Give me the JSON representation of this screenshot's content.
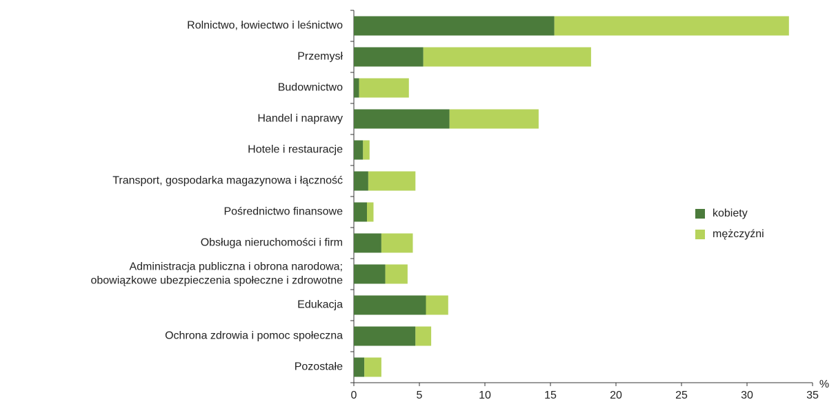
{
  "chart_data": {
    "type": "bar",
    "orientation": "horizontal",
    "stacked": true,
    "categories": [
      "Rolnictwo, łowiectwo i leśnictwo",
      "Przemysł",
      "Budownictwo",
      "Handel i naprawy",
      "Hotele i restauracje",
      "Transport, gospodarka magazynowa i łączność",
      "Pośrednictwo finansowe",
      "Obsługa nieruchomości i firm",
      "Administracja publiczna i obrona narodowa;\nobowiązkowe ubezpieczenia społeczne i zdrowotne",
      "Edukacja",
      "Ochrona zdrowia i pomoc społeczna",
      "Pozostałe"
    ],
    "series": [
      {
        "name": "kobiety",
        "color": "#4b7b3b",
        "values": [
          15.3,
          5.3,
          0.4,
          7.3,
          0.7,
          1.1,
          1.0,
          2.1,
          2.4,
          5.5,
          4.7,
          0.8
        ]
      },
      {
        "name": "mężczyźni",
        "color": "#b6d35b",
        "values": [
          17.9,
          12.8,
          3.8,
          6.8,
          0.5,
          3.6,
          0.5,
          2.4,
          1.7,
          1.7,
          1.2,
          1.3
        ]
      }
    ],
    "x_unit": "%",
    "xlim": [
      0,
      35
    ],
    "xticks": [
      0,
      5,
      10,
      15,
      20,
      25,
      30,
      35
    ],
    "legend": "right",
    "grid": false
  }
}
